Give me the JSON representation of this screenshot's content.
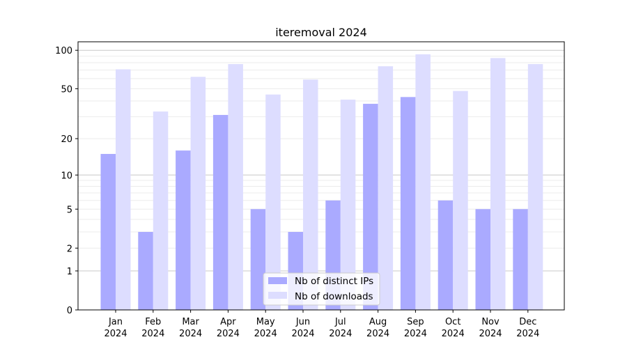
{
  "chart_data": {
    "type": "bar",
    "title": "iteremoval 2024",
    "xlabel": "",
    "ylabel": "",
    "yscale": "symlog (log10(1+y))",
    "ylim": [
      0,
      110
    ],
    "yticks": [
      0,
      1,
      2,
      5,
      10,
      20,
      50,
      100
    ],
    "grid": true,
    "legend_position": "bottom-center",
    "categories": [
      [
        "Jan",
        "2024"
      ],
      [
        "Feb",
        "2024"
      ],
      [
        "Mar",
        "2024"
      ],
      [
        "Apr",
        "2024"
      ],
      [
        "May",
        "2024"
      ],
      [
        "Jun",
        "2024"
      ],
      [
        "Jul",
        "2024"
      ],
      [
        "Aug",
        "2024"
      ],
      [
        "Sep",
        "2024"
      ],
      [
        "Oct",
        "2024"
      ],
      [
        "Nov",
        "2024"
      ],
      [
        "Dec",
        "2024"
      ]
    ],
    "series": [
      {
        "name": "Nb of distinct IPs",
        "color": "#aaaaff",
        "values": [
          15,
          3,
          16,
          31,
          5,
          3,
          6,
          38,
          43,
          6,
          5,
          5
        ]
      },
      {
        "name": "Nb of downloads",
        "color": "#ddddff",
        "values": [
          71,
          33,
          62,
          78,
          45,
          59,
          41,
          75,
          93,
          48,
          87,
          78
        ]
      }
    ]
  }
}
